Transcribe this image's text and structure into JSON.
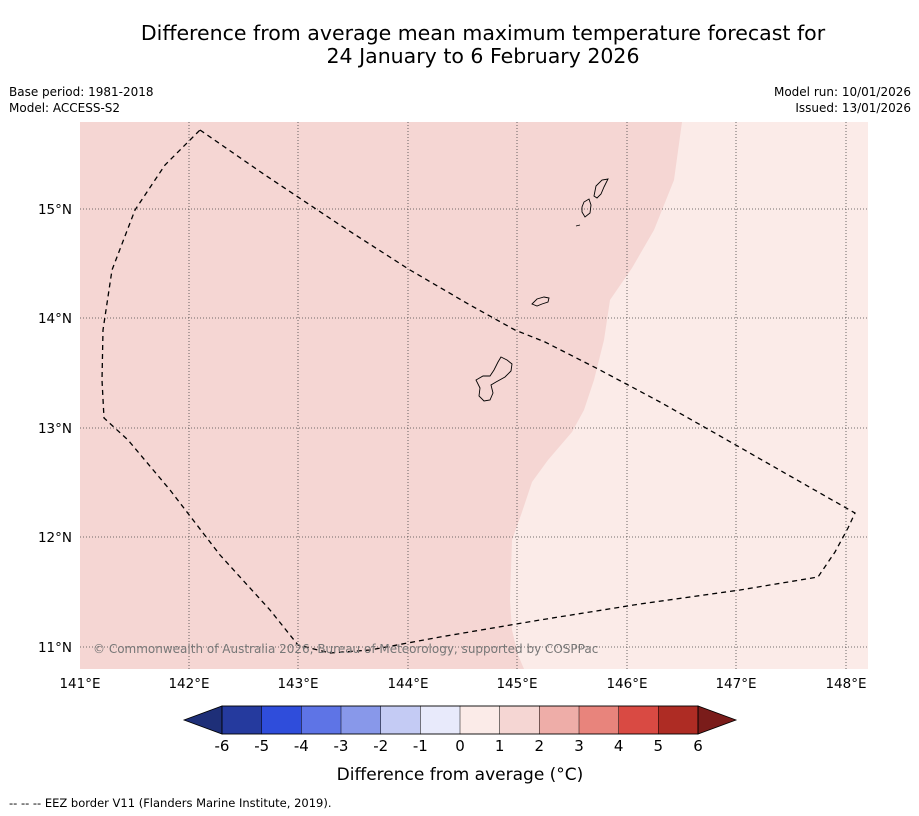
{
  "title": {
    "line1": "Difference from average mean maximum temperature forecast for",
    "line2": "24 January to 6 February 2026"
  },
  "metadata": {
    "base_period": "Base period: 1981-2018",
    "model": "Model: ACCESS-S2",
    "model_run": "Model run: 10/01/2026",
    "issued": "Issued: 13/01/2026"
  },
  "map": {
    "lon_range": [
      141.0,
      148.2
    ],
    "lat_range": [
      10.8,
      15.8
    ],
    "lon_ticks": [
      "141°E",
      "142°E",
      "143°E",
      "144°E",
      "145°E",
      "146°E",
      "147°E",
      "148°E"
    ],
    "lat_ticks": [
      "11°N",
      "12°N",
      "13°N",
      "14°N",
      "15°N"
    ],
    "zones": [
      {
        "name": "anomaly 1 to 2 °C",
        "color": "#f5d6d3"
      },
      {
        "name": "anomaly 0 to 1 °C",
        "color": "#fbebe8"
      }
    ],
    "features": [
      "Guam",
      "Rota",
      "Tinian",
      "Saipan",
      "EEZ border"
    ],
    "credit": "© Commonwealth of Australia 2026, Bureau of Meteorology, supported by COSPPac"
  },
  "colorbar": {
    "label": "Difference from average (°C)",
    "ticks": [
      "-6",
      "-5",
      "-4",
      "-3",
      "-2",
      "-1",
      "0",
      "1",
      "2",
      "3",
      "4",
      "5",
      "6"
    ],
    "colors": [
      "#253a9e",
      "#2f4ddb",
      "#5e74e6",
      "#8898ea",
      "#c4cbf4",
      "#e8eafb",
      "#fbebe8",
      "#f5d6d3",
      "#eeada8",
      "#e8847c",
      "#d94a43",
      "#ae2c24"
    ],
    "under_color": "#1e2f78",
    "over_color": "#7a1c1a"
  },
  "footnote": "--  --  -- EEZ border V11 (Flanders Marine Institute, 2019)."
}
